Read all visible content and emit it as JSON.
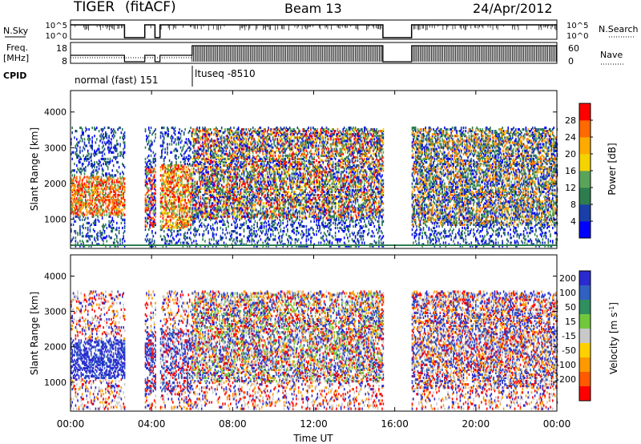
{
  "header": {
    "station": "TIGER",
    "mode": "(fitACF)",
    "beam": "Beam 13",
    "date": "24/Apr/2012"
  },
  "cpid_label": "CPID",
  "cpid_segments": [
    "normal (fast) 151",
    "ltuseq -8510"
  ],
  "chart_data": [
    {
      "type": "line",
      "title": "",
      "left_label": "N.Sky",
      "right_label": "N.Search",
      "right_legend_style": "dotted",
      "yticks_left": [
        "10^5",
        "10^0"
      ],
      "yticks_right": [
        "10^5",
        "10^0"
      ],
      "xlim": [
        "00:00",
        "24:00"
      ],
      "series": [
        {
          "style": "solid",
          "x": [
            "00:00",
            "02:40",
            "02:40",
            "03:40",
            "03:40",
            "04:10",
            "04:10",
            "04:25",
            "04:25",
            "15:25",
            "15:25",
            "16:50",
            "16:50",
            "24:00"
          ],
          "y": [
            100000,
            100000,
            1,
            1,
            100000,
            100000,
            1,
            1,
            100000,
            100000,
            1,
            1,
            100000,
            100000
          ]
        }
      ]
    },
    {
      "type": "line",
      "title": "",
      "left_label_lines": [
        "Freq.",
        "[MHz]"
      ],
      "right_label": "Nave",
      "right_legend_style": "dotted",
      "yticks_left": [
        "18",
        "8"
      ],
      "yticks_right": [
        "60",
        "0"
      ],
      "ylim_left": [
        8,
        18
      ],
      "ylim_right": [
        0,
        60
      ],
      "xlim": [
        "00:00",
        "24:00"
      ],
      "series": [
        {
          "style": "solid",
          "x": [
            "00:00",
            "02:40",
            "02:40",
            "03:40",
            "03:40",
            "04:10",
            "04:10",
            "04:25",
            "04:25",
            "06:00",
            "06:00",
            "15:25",
            "15:25",
            "16:50",
            "16:50",
            "24:00"
          ],
          "y": [
            12,
            12,
            8,
            8,
            12,
            12,
            8,
            8,
            12,
            12,
            18,
            18,
            8,
            8,
            18,
            18
          ]
        },
        {
          "style": "dotted",
          "x": [
            "00:00",
            "06:00"
          ],
          "y": [
            10.5,
            10.5
          ]
        }
      ]
    },
    {
      "type": "heatmap",
      "title": "",
      "ylabel": "Slant Range [km]",
      "yticks": [
        1000,
        2000,
        3000,
        4000
      ],
      "ylim": [
        180,
        4600
      ],
      "xlim": [
        "00:00",
        "24:00"
      ],
      "colorbar": {
        "label": "Power [dB]",
        "ticks": [
          4,
          8,
          12,
          16,
          20,
          24,
          28
        ],
        "colors": [
          "#0000ff",
          "#1a3fa8",
          "#2e7d4f",
          "#5aa35a",
          "#f4d300",
          "#ffaa00",
          "#ff6a00",
          "#ff0000"
        ]
      },
      "data_windows": [
        {
          "start": "00:00",
          "end": "02:40",
          "core_range": [
            1100,
            2200
          ],
          "core_colors": [
            "#ff0000",
            "#ff6a00",
            "#ffaa00",
            "#5aa35a"
          ]
        },
        {
          "start": "03:40",
          "end": "04:10",
          "core_range": [
            700,
            2400
          ],
          "core_colors": [
            "#ff0000",
            "#ff6a00",
            "#5aa35a",
            "#0000ff"
          ]
        },
        {
          "start": "04:25",
          "end": "06:00",
          "core_range": [
            700,
            2500
          ],
          "core_colors": [
            "#ff0000",
            "#ff6a00",
            "#5aa35a",
            "#f4d300"
          ]
        },
        {
          "start": "06:00",
          "end": "15:25",
          "core_range": [
            1000,
            3500
          ],
          "core_colors": [
            "#0000ff",
            "#1a3fa8",
            "#2e7d4f",
            "#5aa35a",
            "#f4d300",
            "#ff6a00",
            "#ff0000"
          ]
        },
        {
          "start": "16:50",
          "end": "24:00",
          "core_range": [
            800,
            3500
          ],
          "core_colors": [
            "#0000ff",
            "#1a3fa8",
            "#2e7d4f",
            "#5aa35a",
            "#ffaa00",
            "#ff6a00"
          ]
        }
      ]
    },
    {
      "type": "heatmap",
      "title": "",
      "ylabel": "Slant Range [km]",
      "xlabel": "Time UT",
      "yticks": [
        1000,
        2000,
        3000,
        4000
      ],
      "ylim": [
        180,
        4600
      ],
      "xlim": [
        "00:00",
        "24:00"
      ],
      "xticks": [
        "00:00",
        "04:00",
        "08:00",
        "12:00",
        "16:00",
        "20:00",
        "00:00"
      ],
      "colorbar": {
        "label": "Velocity [m s-1]",
        "ticks": [
          200,
          100,
          50,
          15,
          -15,
          -50,
          -100,
          -200
        ],
        "colors": [
          "#2a2ad0",
          "#3060c0",
          "#2f8f5f",
          "#72c83c",
          "#c8c8c8",
          "#ffd000",
          "#ff9900",
          "#ff5a00",
          "#ff0000"
        ]
      },
      "data_windows": [
        {
          "start": "00:00",
          "end": "02:40",
          "core_range": [
            1100,
            2200
          ],
          "core_colors": [
            "#2a2ad0",
            "#3060c0",
            "#2a2ad0"
          ]
        },
        {
          "start": "03:40",
          "end": "04:10",
          "core_range": [
            700,
            2400
          ],
          "core_colors": [
            "#2a2ad0",
            "#3060c0",
            "#ff0000"
          ]
        },
        {
          "start": "04:25",
          "end": "06:00",
          "core_range": [
            700,
            2500
          ],
          "core_colors": [
            "#2a2ad0",
            "#3060c0",
            "#ff0000",
            "#c8c8c8"
          ]
        },
        {
          "start": "06:00",
          "end": "15:25",
          "core_range": [
            1000,
            3500
          ],
          "core_colors": [
            "#2a2ad0",
            "#ff0000",
            "#ff9900",
            "#c8c8c8",
            "#3060c0",
            "#72c83c"
          ]
        },
        {
          "start": "16:50",
          "end": "24:00",
          "core_range": [
            800,
            3500
          ],
          "core_colors": [
            "#ff0000",
            "#ff9900",
            "#2a2ad0",
            "#c8c8c8",
            "#3060c0"
          ]
        }
      ]
    }
  ]
}
